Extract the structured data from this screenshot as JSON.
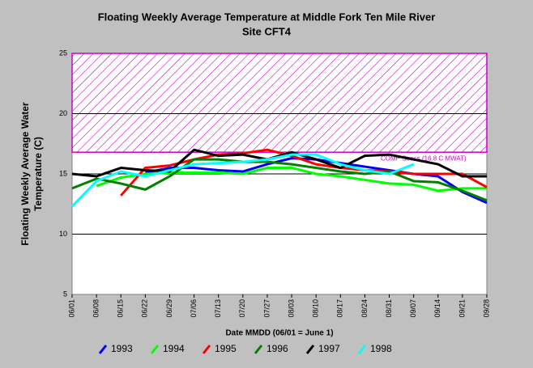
{
  "chart_data": {
    "type": "line",
    "title": "Floating Weekly Average Temperature at Middle Fork Ten Mile River",
    "subtitle": "Site CFT4",
    "y_label": [
      "Floating Weekly Average Water",
      "Temperature (C)"
    ],
    "x_label": "Date MMDD (06/01 = June 1)",
    "annotation": "COMP Stress (16.8 C MWAT)",
    "threshold": 16.8,
    "threshold_color": "#cc00cc",
    "categories": [
      "06/01",
      "06/08",
      "06/15",
      "06/22",
      "06/29",
      "07/06",
      "07/13",
      "07/20",
      "07/27",
      "08/03",
      "08/10",
      "08/17",
      "08/24",
      "08/31",
      "09/07",
      "09/14",
      "09/21",
      "09/28"
    ],
    "series": [
      {
        "name": "1993",
        "color": "#0000ff",
        "values": [
          null,
          null,
          null,
          15.1,
          15.5,
          15.5,
          15.3,
          15.2,
          15.8,
          16.3,
          16.2,
          15.9,
          15.6,
          15.3,
          15.0,
          14.8,
          13.5,
          12.6
        ]
      },
      {
        "name": "1994",
        "color": "#00ff00",
        "values": [
          null,
          14.0,
          14.7,
          15.0,
          15.1,
          15.1,
          15.1,
          15.0,
          15.5,
          15.5,
          15.0,
          14.8,
          14.5,
          14.2,
          14.1,
          13.6,
          13.8,
          13.8
        ]
      },
      {
        "name": "1995",
        "color": "#ff0000",
        "values": [
          null,
          null,
          13.2,
          15.5,
          15.7,
          16.2,
          16.6,
          16.7,
          17.0,
          16.5,
          15.8,
          15.5,
          15.3,
          15.2,
          15.0,
          15.0,
          15.0,
          13.9
        ]
      },
      {
        "name": "1996",
        "color": "#008000",
        "values": [
          13.8,
          14.6,
          14.2,
          13.7,
          14.8,
          16.2,
          16.2,
          16.0,
          16.0,
          15.8,
          15.5,
          15.2,
          15.0,
          15.2,
          14.4,
          14.3,
          13.6,
          12.8
        ]
      },
      {
        "name": "1997",
        "color": "#000000",
        "values": [
          15.0,
          14.8,
          15.5,
          15.3,
          15.2,
          17.0,
          16.5,
          16.6,
          16.2,
          16.8,
          16.2,
          15.5,
          16.5,
          16.6,
          16.2,
          15.8,
          14.8,
          14.8
        ]
      },
      {
        "name": "1998",
        "color": "#00ffff",
        "values": [
          12.3,
          14.4,
          15.2,
          14.8,
          15.3,
          15.8,
          15.9,
          16.0,
          16.2,
          16.6,
          16.6,
          15.8,
          15.3,
          15.0,
          15.8,
          null,
          null,
          null
        ]
      }
    ],
    "ylim": [
      5,
      25
    ],
    "yticks": [
      5,
      10,
      15,
      20,
      25
    ],
    "grid": true
  }
}
